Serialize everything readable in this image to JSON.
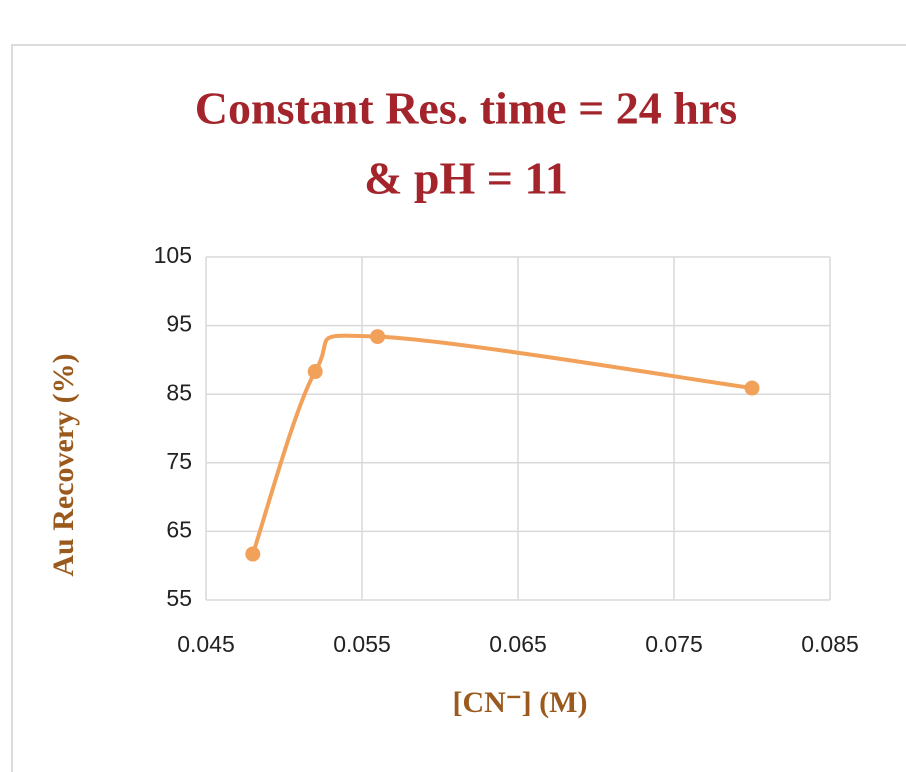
{
  "chart_data": {
    "type": "line",
    "title": [
      "Constant Res. time = 24 hrs",
      "& pH = 11"
    ],
    "x_label": "[CN⁻] (M)",
    "y_label": "Au Recovery (%)",
    "series": [
      {
        "color": "#f2a15a",
        "x": [
          0.048,
          0.052,
          0.056,
          0.08
        ],
        "values": [
          61.7,
          88.3,
          93.4,
          85.9
        ]
      }
    ],
    "xlim": [
      0.045,
      0.085
    ],
    "xticks": [
      0.045,
      0.055,
      0.065,
      0.075,
      0.085
    ],
    "ylim": [
      55,
      105
    ],
    "yticks": [
      55,
      65,
      75,
      85,
      95,
      105
    ],
    "grid": true,
    "smooth": true
  }
}
